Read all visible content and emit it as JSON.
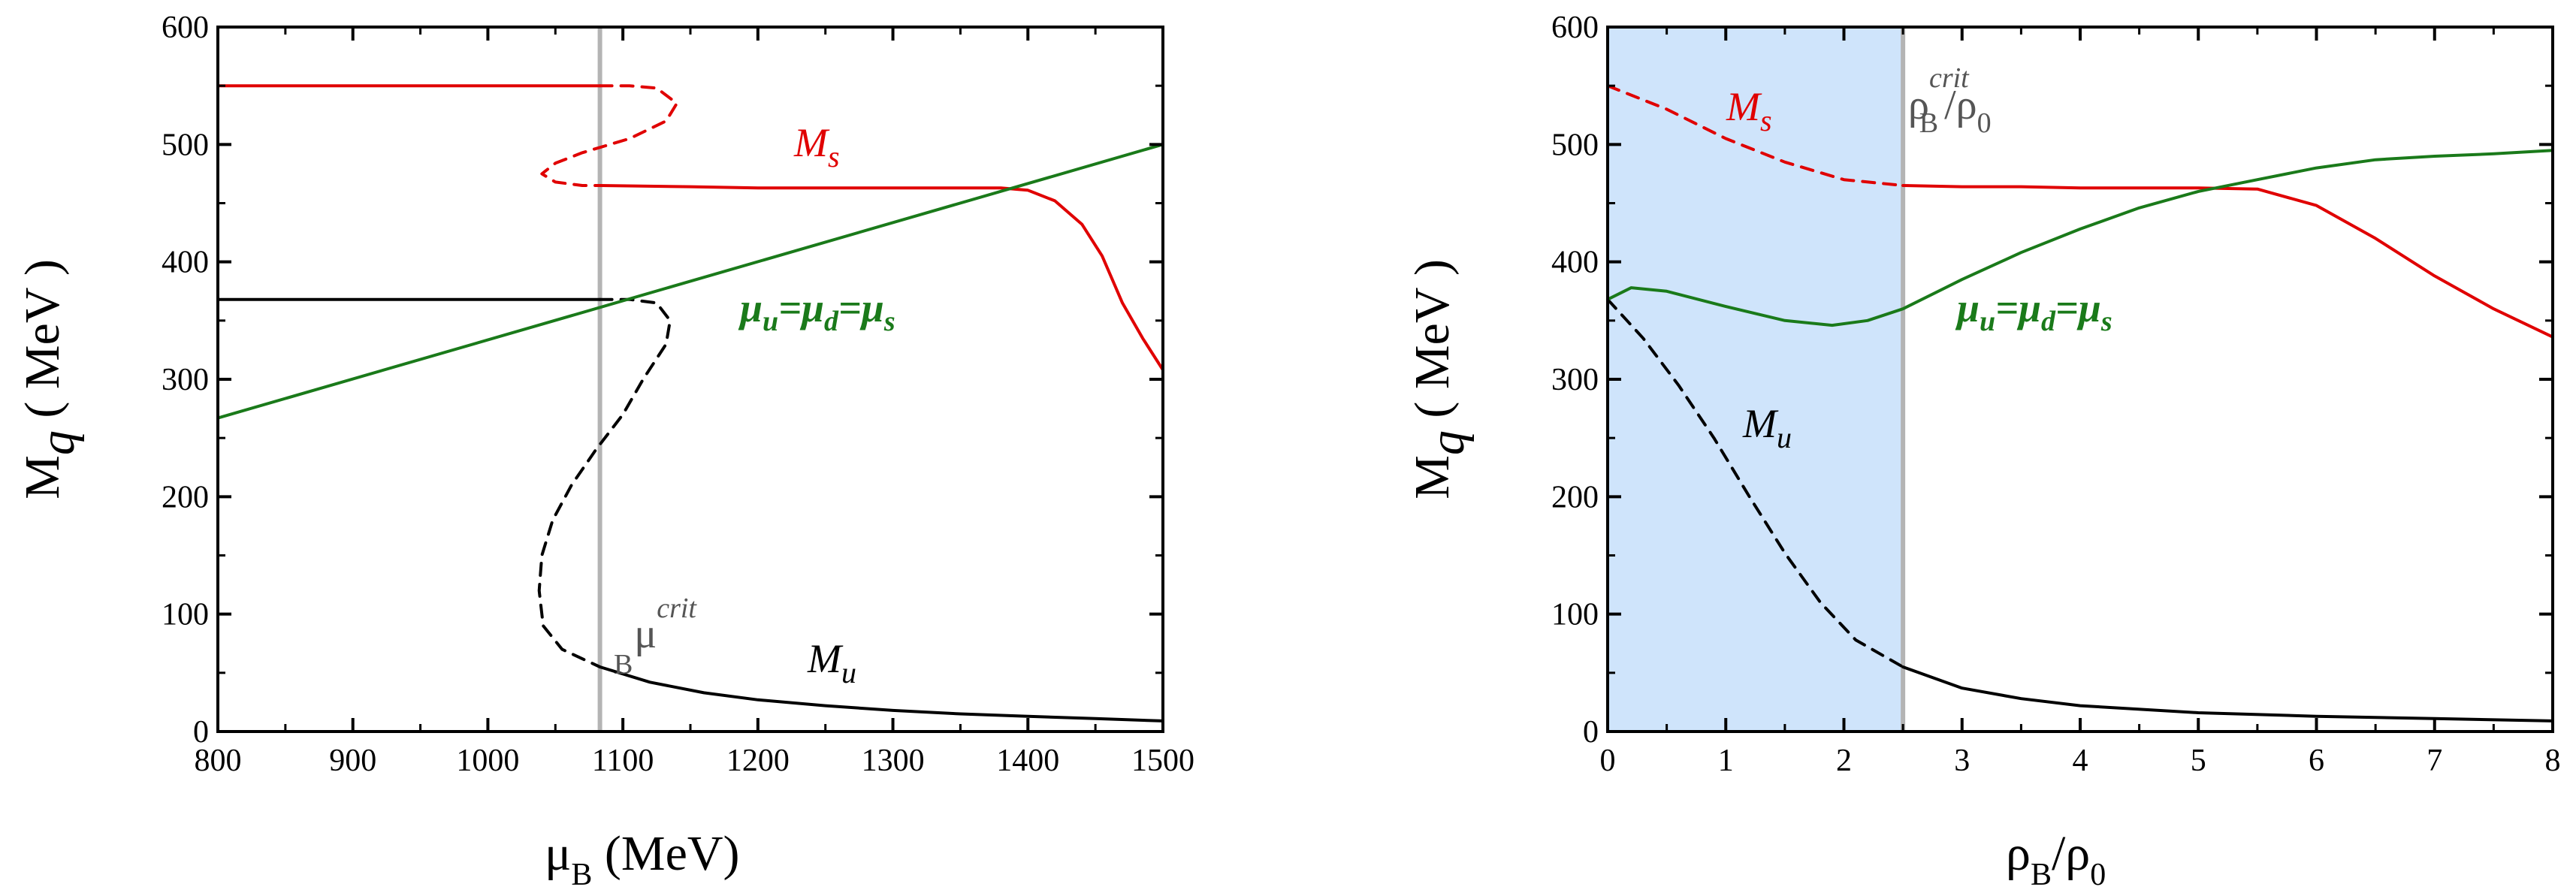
{
  "colors": {
    "strange": "#e00000",
    "light": "#000000",
    "chem": "#1a7a1a",
    "critical_line": "#b4b4b4",
    "shade": "#cfe4fb"
  },
  "chart_data": [
    {
      "type": "line",
      "xlabel": {
        "main": "μ",
        "sub": "B",
        "unit": " (MeV)"
      },
      "ylabel": {
        "main": "M",
        "sub": "q",
        "unit": " ( MeV )"
      },
      "xlim": [
        800,
        1500
      ],
      "ylim": [
        0,
        600
      ],
      "xticks": [
        "800",
        "900",
        "1000",
        "1100",
        "1200",
        "1300",
        "1400",
        "1500"
      ],
      "yticks": [
        "0",
        "100",
        "200",
        "300",
        "400",
        "500",
        "600"
      ],
      "critical": {
        "x": 1083,
        "label": "μ",
        "sup": "crit",
        "sub": "B"
      },
      "series": [
        {
          "name": "Ms_stable_low",
          "label": "",
          "color": "strange",
          "dash": false,
          "x": [
            800,
            1083
          ],
          "y": [
            550,
            550
          ]
        },
        {
          "name": "Ms_unstable",
          "label": "",
          "color": "strange",
          "dash": true,
          "x": [
            1083,
            1105,
            1125,
            1140,
            1132,
            1105,
            1070,
            1050,
            1040,
            1050,
            1070,
            1083
          ],
          "y": [
            550,
            550,
            548,
            535,
            520,
            505,
            493,
            484,
            475,
            468,
            465,
            465
          ]
        },
        {
          "name": "Ms_stable_high",
          "label": "M",
          "label_sub": "s",
          "color": "strange",
          "dash": false,
          "x": [
            1083,
            1150,
            1200,
            1250,
            1300,
            1350,
            1380,
            1400,
            1420,
            1440,
            1455,
            1470,
            1485,
            1500
          ],
          "y": [
            465,
            464,
            463,
            463,
            463,
            463,
            463,
            461,
            452,
            432,
            405,
            365,
            335,
            308
          ]
        },
        {
          "name": "Mu_stable_low",
          "label": "",
          "color": "light",
          "dash": false,
          "x": [
            800,
            1083
          ],
          "y": [
            368,
            368
          ]
        },
        {
          "name": "Mu_unstable",
          "label": "",
          "color": "light",
          "dash": true,
          "x": [
            1083,
            1105,
            1125,
            1135,
            1132,
            1115,
            1100,
            1080,
            1062,
            1048,
            1040,
            1038,
            1041,
            1055,
            1083
          ],
          "y": [
            368,
            368,
            365,
            350,
            330,
            300,
            270,
            240,
            210,
            180,
            150,
            120,
            90,
            70,
            55
          ]
        },
        {
          "name": "Mu_stable_high",
          "label": "M",
          "label_sub": "u",
          "color": "light",
          "dash": false,
          "x": [
            1083,
            1120,
            1160,
            1200,
            1250,
            1300,
            1350,
            1400,
            1450,
            1500
          ],
          "y": [
            55,
            42,
            33,
            27,
            22,
            18,
            15,
            13,
            11,
            9
          ]
        },
        {
          "name": "mu_chem",
          "label": "μ",
          "label_eq": "u=μd=μs",
          "color": "chem",
          "dash": false,
          "x": [
            800,
            1500
          ],
          "y": [
            267,
            500
          ]
        }
      ],
      "labels": {
        "ms": {
          "text": "M",
          "sub": "s"
        },
        "mu": {
          "text": "M",
          "sub": "u"
        },
        "chem": {
          "parts": [
            "μ",
            "u",
            "=μ",
            "d",
            "=μ",
            "s"
          ]
        }
      }
    },
    {
      "type": "line",
      "xlabel": {
        "main": "ρ",
        "sub": "B",
        "slash": "/ρ",
        "sub2": "0"
      },
      "ylabel": {
        "main": "M",
        "sub": "q",
        "unit": " ( MeV )"
      },
      "xlim": [
        0,
        8
      ],
      "ylim": [
        0,
        600
      ],
      "xticks": [
        "0",
        "1",
        "2",
        "3",
        "4",
        "5",
        "6",
        "7",
        "8"
      ],
      "yticks": [
        "0",
        "100",
        "200",
        "300",
        "400",
        "500",
        "600"
      ],
      "critical": {
        "x": 2.5,
        "label": "ρ",
        "sup": "crit",
        "sub": "B",
        "slash": "/ρ",
        "sub2": "0"
      },
      "shade": [
        0,
        2.5
      ],
      "series": [
        {
          "name": "Ms_unstable",
          "label": "",
          "color": "strange",
          "dash": true,
          "x": [
            0,
            0.5,
            1.0,
            1.5,
            2.0,
            2.5
          ],
          "y": [
            550,
            530,
            505,
            485,
            470,
            465
          ]
        },
        {
          "name": "Ms_stable",
          "label": "M",
          "label_sub": "s",
          "color": "strange",
          "dash": false,
          "x": [
            2.5,
            3.0,
            3.5,
            4.0,
            4.5,
            5.0,
            5.5,
            6.0,
            6.5,
            7.0,
            7.5,
            8.0
          ],
          "y": [
            465,
            464,
            464,
            463,
            463,
            463,
            462,
            448,
            420,
            388,
            360,
            336
          ]
        },
        {
          "name": "Mu_unstable",
          "label": "",
          "color": "light",
          "dash": true,
          "x": [
            0,
            0.3,
            0.6,
            0.9,
            1.2,
            1.5,
            1.8,
            2.1,
            2.5
          ],
          "y": [
            368,
            335,
            295,
            250,
            200,
            152,
            110,
            78,
            55
          ]
        },
        {
          "name": "Mu_stable",
          "label": "M",
          "label_sub": "u",
          "color": "light",
          "dash": false,
          "x": [
            2.5,
            3.0,
            3.5,
            4.0,
            5.0,
            6.0,
            7.0,
            8.0
          ],
          "y": [
            55,
            37,
            28,
            22,
            16,
            13,
            11,
            9
          ]
        },
        {
          "name": "mu_chem",
          "label": "μ",
          "color": "chem",
          "dash": false,
          "x": [
            0,
            0.2,
            0.5,
            1.0,
            1.5,
            1.9,
            2.2,
            2.5,
            3.0,
            3.5,
            4.0,
            4.5,
            5.0,
            5.5,
            6.0,
            6.5,
            7.0,
            7.5,
            8.0
          ],
          "y": [
            368,
            378,
            375,
            362,
            350,
            346,
            350,
            360,
            385,
            408,
            428,
            446,
            460,
            470,
            480,
            487,
            490,
            492,
            495
          ]
        }
      ],
      "labels": {
        "ms": {
          "text": "M",
          "sub": "s"
        },
        "mu": {
          "text": "M",
          "sub": "u"
        },
        "chem": {
          "parts": [
            "μ",
            "u",
            "=μ",
            "d",
            "=μ",
            "s"
          ]
        }
      }
    }
  ]
}
